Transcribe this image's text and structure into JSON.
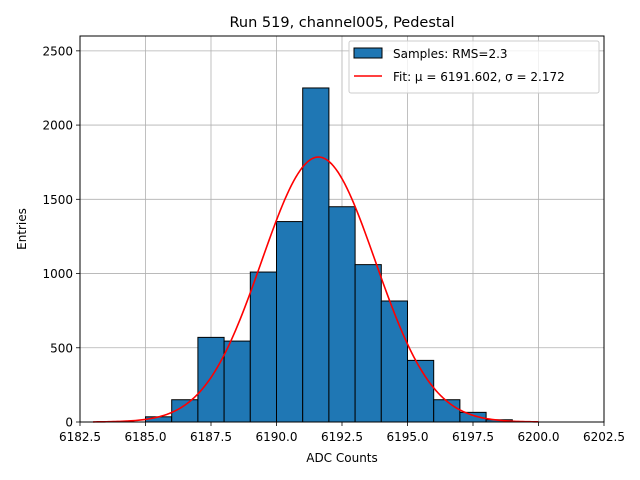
{
  "chart_data": {
    "type": "bar",
    "title": "Run 519, channel005, Pedestal",
    "xlabel": "ADC Counts",
    "ylabel": "Entries",
    "xlim": [
      6182.5,
      6202.5
    ],
    "ylim": [
      0,
      2600
    ],
    "xticks": [
      "6182.5",
      "6185.0",
      "6187.5",
      "6190.0",
      "6192.5",
      "6195.0",
      "6197.5",
      "6200.0",
      "6202.5"
    ],
    "xtick_values": [
      6182.5,
      6185.0,
      6187.5,
      6190.0,
      6192.5,
      6195.0,
      6197.5,
      6200.0,
      6202.5
    ],
    "yticks": [
      "0",
      "500",
      "1000",
      "1500",
      "2000",
      "2500"
    ],
    "ytick_values": [
      0,
      500,
      1000,
      1500,
      2000,
      2500
    ],
    "grid": true,
    "legend_position": "top-right",
    "histogram": {
      "name": "Samples: RMS=2.3",
      "color": "#1f77b4",
      "edge_color": "#000000",
      "bin_width": 1,
      "bin_starts": [
        6185,
        6186,
        6187,
        6188,
        6189,
        6190,
        6191,
        6192,
        6193,
        6194,
        6195,
        6196,
        6197,
        6198
      ],
      "values": [
        35,
        150,
        570,
        545,
        1010,
        1350,
        2250,
        1450,
        1060,
        815,
        415,
        150,
        65,
        15
      ]
    },
    "fit": {
      "name": "Fit: μ = 6191.602, σ = 2.172",
      "color": "#ff0000",
      "mu": 6191.602,
      "sigma": 2.172,
      "amplitude": 1785,
      "x_range": [
        6183,
        6200
      ]
    }
  }
}
